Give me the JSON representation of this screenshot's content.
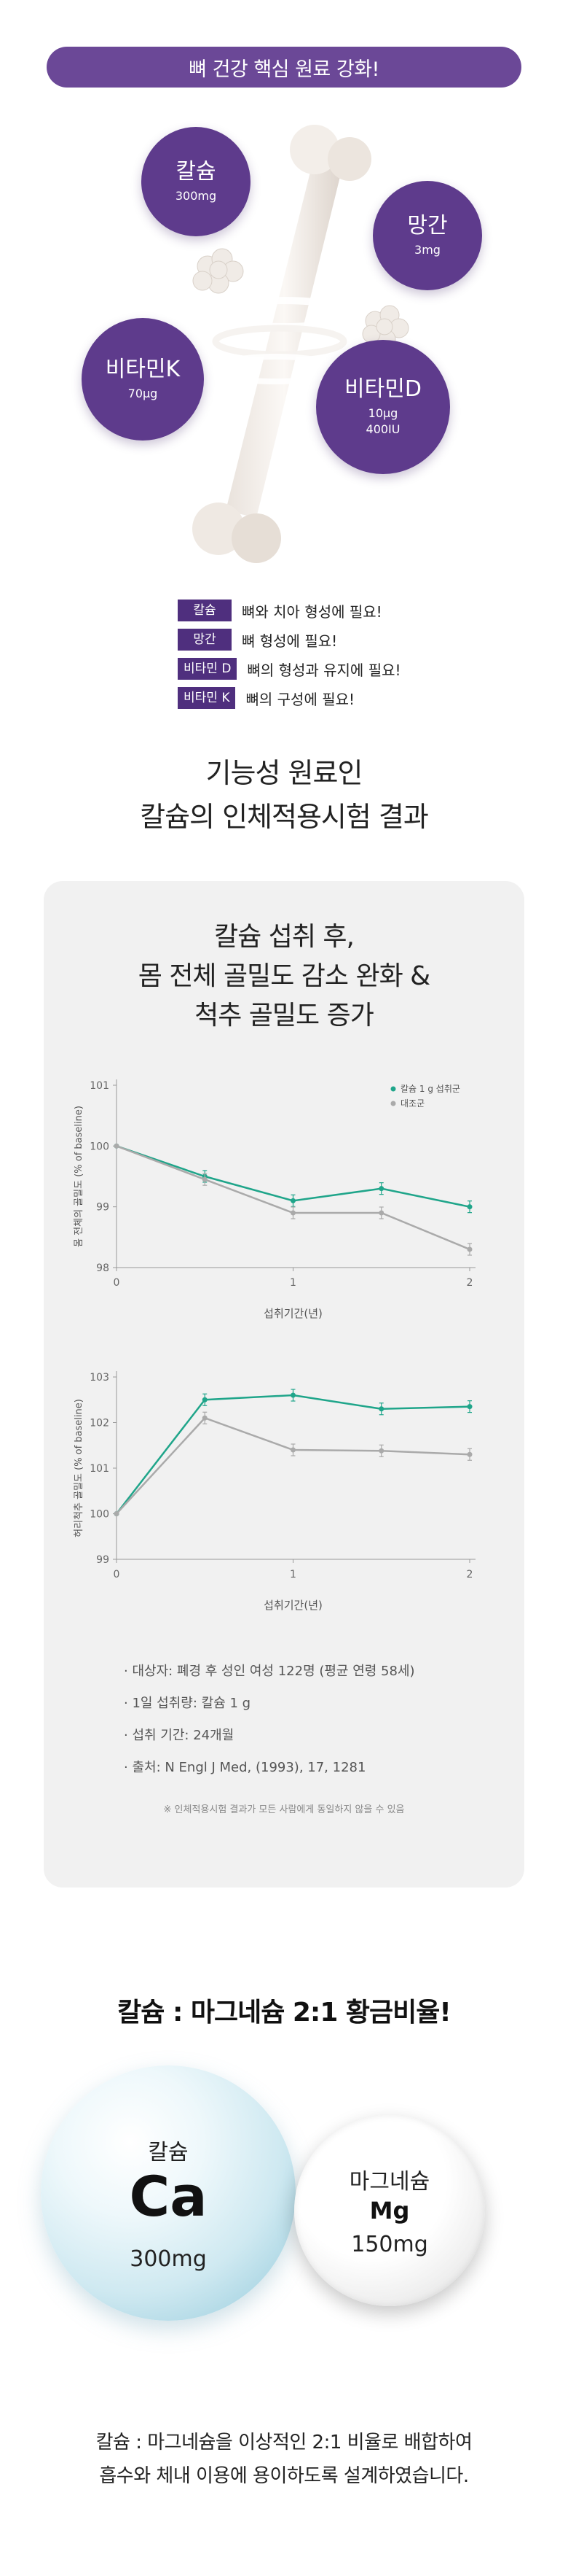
{
  "banner": "뼈 건강 핵심 원료 강화!",
  "nutrients": {
    "calcium": {
      "name": "칼슘",
      "dose": "300mg"
    },
    "manganese": {
      "name": "망간",
      "dose": "3mg"
    },
    "vitamin_k": {
      "name": "비타민K",
      "dose": "70μg"
    },
    "vitamin_d": {
      "name": "비타민D",
      "dose1": "10μg",
      "dose2": "400IU"
    }
  },
  "functions": [
    {
      "tag": "칼슘",
      "text": "뼈와 치아 형성에 필요!"
    },
    {
      "tag": "망간",
      "text": "뼈 형성에 필요!"
    },
    {
      "tag": "비타민 D",
      "text": "뼈의 형성과 유지에 필요!"
    },
    {
      "tag": "비타민 K",
      "text": "뼈의 구성에 필요!"
    }
  ],
  "section2": {
    "title_line1": "기능성 원료인",
    "title_line2": "칼슘의 인체적용시험 결과",
    "card_title_line1": "칼슘 섭취 후,",
    "card_title_line2": "몸 전체 골밀도 감소 완화 &",
    "card_title_line3": "척추 골밀도 증가"
  },
  "chart_data": [
    {
      "type": "line",
      "ylabel": "몸 전체의 골밀도 (% of baseline)",
      "xlabel": "섭취기간(년)",
      "x_ticks": [
        "0",
        "1",
        "2"
      ],
      "y_ticks": [
        "98",
        "99",
        "100",
        "101"
      ],
      "ylim": [
        98,
        101
      ],
      "xlim": [
        0,
        2
      ],
      "legend_position": "top-right",
      "series": [
        {
          "name": "칼슘 1 g 섭취군",
          "color": "#1fa58a",
          "x": [
            0,
            0.5,
            1,
            1.5,
            2
          ],
          "y": [
            100,
            99.5,
            99.1,
            99.3,
            99.0
          ]
        },
        {
          "name": "대조군",
          "color": "#aaaaaa",
          "x": [
            0,
            0.5,
            1,
            1.5,
            2
          ],
          "y": [
            100,
            99.45,
            98.9,
            98.9,
            98.3
          ]
        }
      ]
    },
    {
      "type": "line",
      "ylabel": "허리척추 골밀도 (% of baseline)",
      "xlabel": "섭취기간(년)",
      "x_ticks": [
        "0",
        "1",
        "2"
      ],
      "y_ticks": [
        "99",
        "100",
        "101",
        "102",
        "103"
      ],
      "ylim": [
        99,
        103
      ],
      "xlim": [
        0,
        2
      ],
      "series": [
        {
          "color": "#1fa58a",
          "x": [
            0,
            0.5,
            1,
            1.5,
            2
          ],
          "y": [
            100,
            102.5,
            102.6,
            102.3,
            102.35
          ]
        },
        {
          "color": "#aaaaaa",
          "x": [
            0,
            0.5,
            1,
            1.5,
            2
          ],
          "y": [
            100,
            102.1,
            101.4,
            101.38,
            101.3
          ]
        }
      ]
    }
  ],
  "notes": [
    "· 대상자: 폐경 후 성인 여성 122명 (평균 연령 58세)",
    "· 1일 섭취량: 칼슘 1 g",
    "· 섭취 기간: 24개월",
    "· 출처: N Engl J Med, (1993), 17, 1281"
  ],
  "disclaimer": "※ 인체적용시험 결과가 모든 사람에게 동일하지 않을 수 있음",
  "ratio": {
    "title": "칼슘 : 마그네슘 2:1 황금비율!",
    "ca_name": "칼슘",
    "ca_symbol": "Ca",
    "ca_dose": "300mg",
    "mg_name": "마그네슘",
    "mg_symbol": "Mg",
    "mg_dose": "150mg",
    "footer_line1": "칼슘 : 마그네슘을 이상적인 2:1 비율로 배합하여",
    "footer_line2": "흡수와 체내 이용에 용이하도록 설계하였습니다."
  },
  "colors": {
    "purple": "#5e3b8c",
    "banner": "#6b4897",
    "teal": "#1fa58a",
    "gray": "#aaaaaa"
  }
}
